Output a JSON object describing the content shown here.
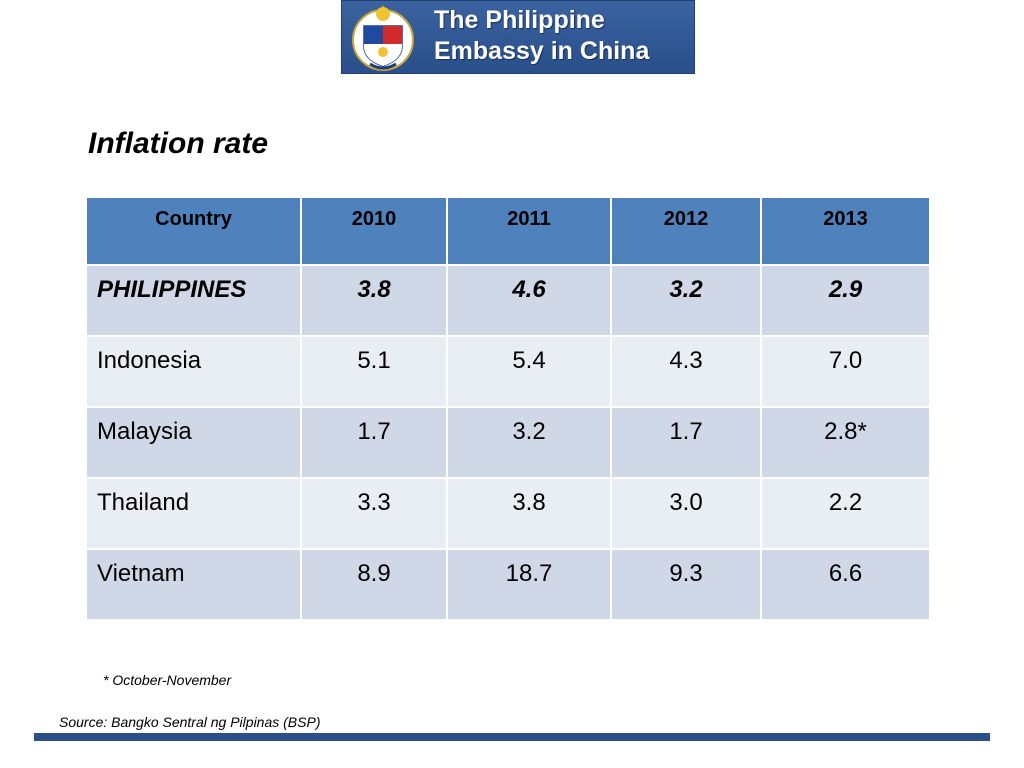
{
  "header": {
    "title_line1": "The Philippine",
    "title_line2": "Embassy in China",
    "logo_icon": "philippine-coat-of-arms-icon"
  },
  "slide": {
    "title": "Inflation rate"
  },
  "table": {
    "columns": [
      "Country",
      "2010",
      "2011",
      "2012",
      "2013"
    ],
    "rows": [
      [
        "PHILIPPINES",
        "3.8",
        "4.6",
        "3.2",
        "2.9"
      ],
      [
        "Indonesia",
        "5.1",
        "5.4",
        "4.3",
        "7.0"
      ],
      [
        "Malaysia",
        "1.7",
        "3.2",
        "1.7",
        "2.8*"
      ],
      [
        "Thailand",
        "3.3",
        "3.8",
        "3.0",
        "2.2"
      ],
      [
        "Vietnam",
        "8.9",
        "18.7",
        "9.3",
        "6.6"
      ]
    ]
  },
  "footnote": "*  October-November",
  "source": "Source:  Bangko Sentral ng Pilpinas (BSP)",
  "colors": {
    "header_blue": "#4f81bd",
    "row_dark": "#d0d8e8",
    "row_light": "#e9edf4",
    "banner_blue": "#2a4f8a"
  }
}
